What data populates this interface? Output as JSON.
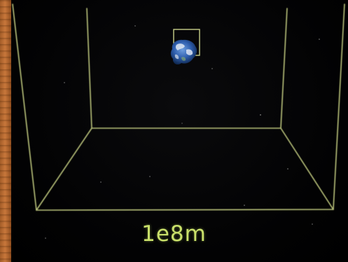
{
  "scene": {
    "scale_label": "1e8m",
    "colors": {
      "grid_line": "#b9c27a",
      "scale_text": "#c9e06a",
      "background": "#020202",
      "wood_edge": "#c8773b"
    },
    "objects": [
      {
        "name": "planet",
        "description_icon": "earth-icon"
      },
      {
        "name": "selection-box",
        "description_icon": "square-outline-icon"
      }
    ]
  }
}
